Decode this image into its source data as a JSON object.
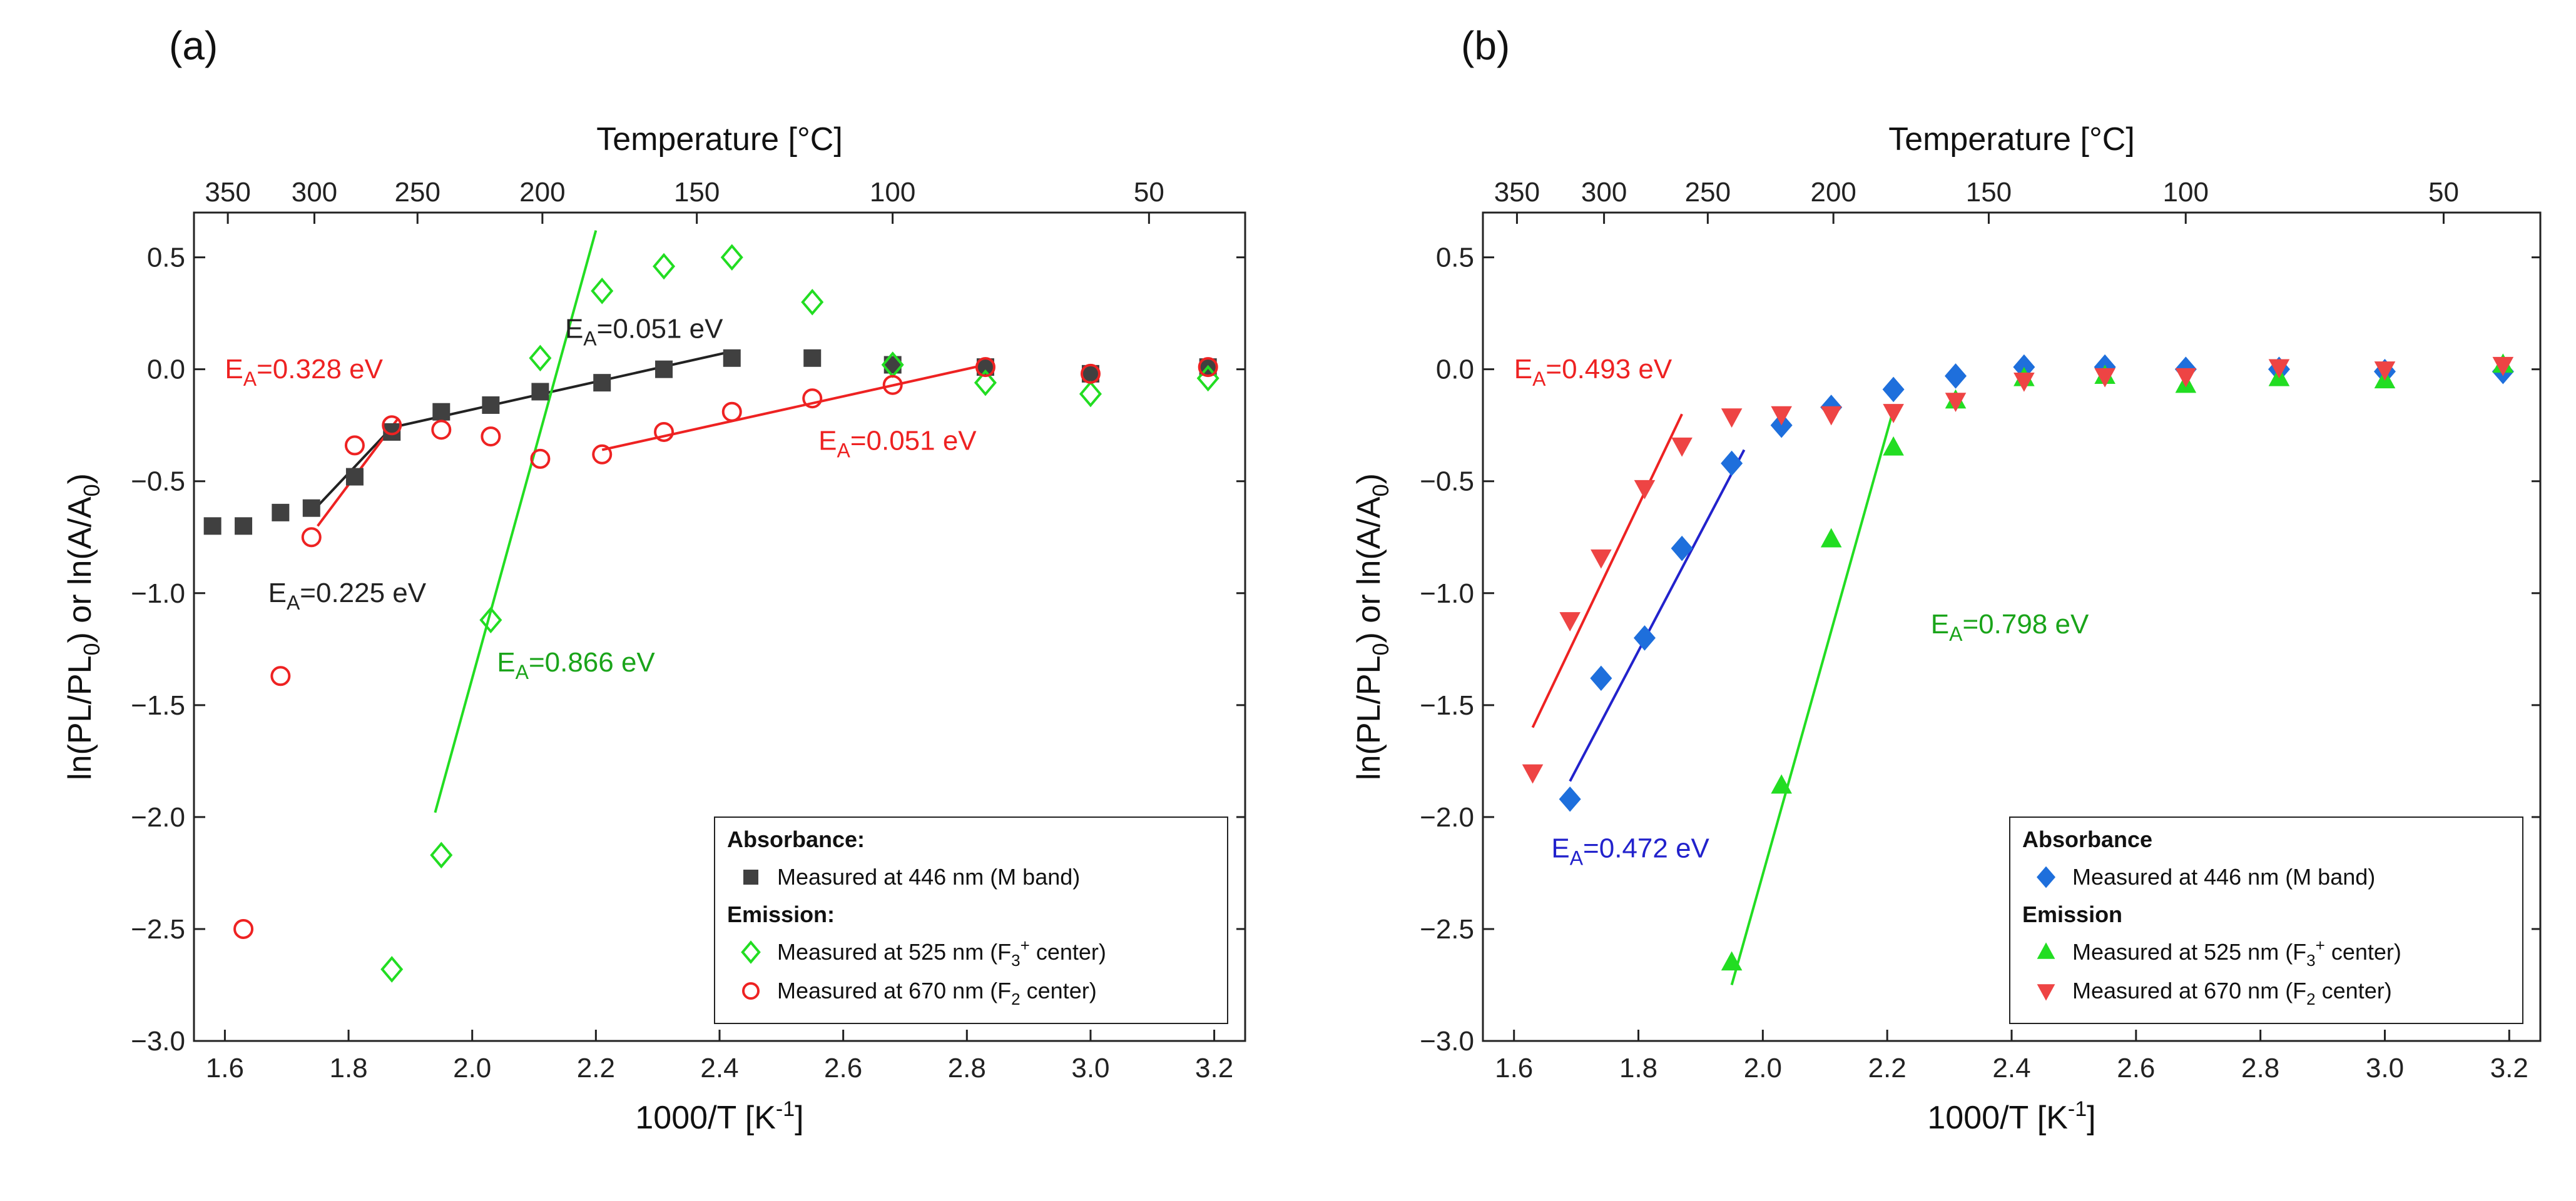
{
  "chart_data": [
    {
      "panel": "(a)",
      "type": "scatter",
      "xlabel": "1000/T [K",
      "xlabel_sup": "-1",
      "xlabel_end": "]",
      "ylabel_parts": [
        "ln(PL/PL",
        "0",
        ") or ln(A/A",
        "0",
        ")"
      ],
      "top_axis_label": "Temperature [°C]",
      "xlim": [
        1.55,
        3.25
      ],
      "ylim": [
        -3.0,
        0.7
      ],
      "xticks": [
        "1.6",
        "1.8",
        "2.0",
        "2.2",
        "2.4",
        "2.6",
        "2.8",
        "3.0",
        "3.2"
      ],
      "yticks": [
        "0.5",
        "0.0",
        "−0.5",
        "−1.0",
        "−1.5",
        "−2.0",
        "−2.5",
        "−3.0"
      ],
      "top_ticks": [
        "350",
        "300",
        "250",
        "200",
        "150",
        "100",
        "50"
      ],
      "series": [
        {
          "name": "Measured at 446 nm (M band)",
          "group": "Absorbance:",
          "marker": "square-filled",
          "color": "#404040",
          "x": [
            1.58,
            1.63,
            1.69,
            1.74,
            1.81,
            1.87,
            1.95,
            2.03,
            2.11,
            2.21,
            2.31,
            2.42,
            2.55,
            2.68,
            2.83,
            3.0,
            3.19
          ],
          "y": [
            -0.7,
            -0.7,
            -0.64,
            -0.62,
            -0.48,
            -0.28,
            -0.19,
            -0.16,
            -0.1,
            -0.06,
            0.0,
            0.05,
            0.05,
            0.02,
            0.01,
            -0.02,
            0.01
          ]
        },
        {
          "name": "Measured at 525 nm (F3+ center)",
          "group": "Emission:",
          "marker": "diamond-open",
          "color": "#22dd22",
          "x": [
            1.87,
            1.95,
            2.03,
            2.11,
            2.21,
            2.31,
            2.42,
            2.55,
            2.68,
            2.83,
            3.0,
            3.19
          ],
          "y": [
            -2.68,
            -2.17,
            -1.12,
            0.05,
            0.35,
            0.46,
            0.5,
            0.3,
            0.02,
            -0.06,
            -0.11,
            -0.04
          ]
        },
        {
          "name": "Measured at 670 nm (F2 center)",
          "group": "Emission:",
          "marker": "circle-open",
          "color": "#ee2222",
          "x": [
            1.63,
            1.69,
            1.74,
            1.81,
            1.87,
            1.95,
            2.03,
            2.11,
            2.21,
            2.31,
            2.42,
            2.55,
            2.68,
            2.83,
            3.0,
            3.19
          ],
          "y": [
            -2.5,
            -1.37,
            -0.75,
            -0.34,
            -0.25,
            -0.27,
            -0.3,
            -0.4,
            -0.38,
            -0.28,
            -0.19,
            -0.13,
            -0.07,
            0.01,
            -0.02,
            0.01
          ]
        }
      ],
      "fit_lines": [
        {
          "x": [
            1.74,
            1.87
          ],
          "y": [
            -0.64,
            -0.26
          ],
          "color": "#222222"
        },
        {
          "x": [
            1.87,
            2.42
          ],
          "y": [
            -0.26,
            0.08
          ],
          "color": "#222222"
        },
        {
          "x": [
            1.75,
            1.88
          ],
          "y": [
            -0.7,
            -0.22
          ],
          "color": "#ee2222"
        },
        {
          "x": [
            2.21,
            2.83
          ],
          "y": [
            -0.36,
            0.02
          ],
          "color": "#ee2222"
        },
        {
          "x": [
            1.94,
            2.2
          ],
          "y": [
            -1.98,
            0.62
          ],
          "color": "#22dd22"
        }
      ],
      "annotations": [
        {
          "prefix": "E",
          "sub": "A",
          "value": "=0.328 eV",
          "color": "#ee2222",
          "at": [
            1.6,
            -0.04
          ]
        },
        {
          "prefix": "E",
          "sub": "A",
          "value": "=0.051 eV",
          "color": "#222222",
          "at": [
            2.15,
            0.14
          ]
        },
        {
          "prefix": "E",
          "sub": "A",
          "value": "=0.051 eV",
          "color": "#ee2222",
          "at": [
            2.56,
            -0.36
          ]
        },
        {
          "prefix": "E",
          "sub": "A",
          "value": "=0.225 eV",
          "color": "#222222",
          "at": [
            1.67,
            -1.04
          ]
        },
        {
          "prefix": "E",
          "sub": "A",
          "value": "=0.866 eV",
          "color": "#1aa41a",
          "at": [
            2.04,
            -1.35
          ]
        }
      ],
      "legend": {
        "position": "bottom-right",
        "absorbance_header": "Absorbance:",
        "emission_header": "Emission:",
        "entries": [
          {
            "text": "Measured at 446 nm (M band)"
          },
          {
            "text": "Measured at 525 nm (F",
            "sub": "3",
            "sup": "+",
            "tail": " center)"
          },
          {
            "text": "Measured at 670 nm (F",
            "sub": "2",
            "tail": " center)"
          }
        ]
      }
    },
    {
      "panel": "(b)",
      "type": "scatter",
      "xlabel": "1000/T [K",
      "xlabel_sup": "-1",
      "xlabel_end": "]",
      "ylabel_parts": [
        "ln(PL/PL",
        "0",
        ") or ln(A/A",
        "0",
        ")"
      ],
      "top_axis_label": "Temperature [°C]",
      "xlim": [
        1.55,
        3.25
      ],
      "ylim": [
        -3.0,
        0.7
      ],
      "xticks": [
        "1.6",
        "1.8",
        "2.0",
        "2.2",
        "2.4",
        "2.6",
        "2.8",
        "3.0",
        "3.2"
      ],
      "yticks": [
        "0.5",
        "0.0",
        "−0.5",
        "−1.0",
        "−1.5",
        "−2.0",
        "−2.5",
        "−3.0"
      ],
      "top_ticks": [
        "350",
        "300",
        "250",
        "200",
        "150",
        "100",
        "50"
      ],
      "series": [
        {
          "name": "Measured at 446 nm (M band)",
          "group": "Absorbance",
          "marker": "diamond-filled",
          "color": "#1e6fdc",
          "x": [
            1.69,
            1.74,
            1.81,
            1.87,
            1.95,
            2.03,
            2.11,
            2.21,
            2.31,
            2.42,
            2.55,
            2.68,
            2.83,
            3.0,
            3.19
          ],
          "y": [
            -1.92,
            -1.38,
            -1.2,
            -0.8,
            -0.42,
            -0.25,
            -0.17,
            -0.09,
            -0.03,
            0.01,
            0.01,
            0.0,
            0.0,
            -0.01,
            -0.01
          ]
        },
        {
          "name": "Measured at 525 nm (F3+ center)",
          "group": "Emission",
          "marker": "triangle-up-filled",
          "color": "#22dd22",
          "x": [
            1.95,
            2.03,
            2.11,
            2.21,
            2.31,
            2.42,
            2.55,
            2.68,
            2.83,
            3.0,
            3.19
          ],
          "y": [
            -2.65,
            -1.86,
            -0.76,
            -0.35,
            -0.14,
            -0.04,
            -0.03,
            -0.07,
            -0.04,
            -0.05,
            0.02
          ]
        },
        {
          "name": "Measured at 670 nm (F2 center)",
          "group": "Emission",
          "marker": "triangle-down-filled",
          "color": "#ee4444",
          "x": [
            1.63,
            1.69,
            1.74,
            1.81,
            1.87,
            1.95,
            2.03,
            2.11,
            2.21,
            2.31,
            2.42,
            2.55,
            2.68,
            2.83,
            3.0,
            3.19
          ],
          "y": [
            -1.8,
            -1.12,
            -0.84,
            -0.53,
            -0.34,
            -0.21,
            -0.2,
            -0.2,
            -0.19,
            -0.14,
            -0.05,
            -0.03,
            -0.03,
            0.01,
            0.0,
            0.02
          ]
        }
      ],
      "fit_lines": [
        {
          "x": [
            1.63,
            1.87
          ],
          "y": [
            -1.6,
            -0.2
          ],
          "color": "#ee2222"
        },
        {
          "x": [
            1.69,
            1.97
          ],
          "y": [
            -1.84,
            -0.36
          ],
          "color": "#2222cc"
        },
        {
          "x": [
            1.95,
            2.21
          ],
          "y": [
            -2.75,
            -0.18
          ],
          "color": "#22dd22"
        }
      ],
      "annotations": [
        {
          "prefix": "E",
          "sub": "A",
          "value": "=0.493 eV",
          "color": "#ee2222",
          "at": [
            1.6,
            -0.04
          ]
        },
        {
          "prefix": "E",
          "sub": "A",
          "value": "=0.472 eV",
          "color": "#2222cc",
          "at": [
            1.66,
            -2.18
          ]
        },
        {
          "prefix": "E",
          "sub": "A",
          "value": "=0.798 eV",
          "color": "#1aa41a",
          "at": [
            2.27,
            -1.18
          ]
        }
      ],
      "legend": {
        "position": "bottom-right",
        "absorbance_header": "Absorbance",
        "emission_header": "Emission",
        "entries": [
          {
            "text": "Measured at 446 nm (M band)"
          },
          {
            "text": "Measured at 525 nm (F",
            "sub": "3",
            "sup": "+",
            "tail": " center)"
          },
          {
            "text": "Measured at 670 nm (F",
            "sub": "2",
            "tail": " center)"
          }
        ]
      }
    }
  ]
}
